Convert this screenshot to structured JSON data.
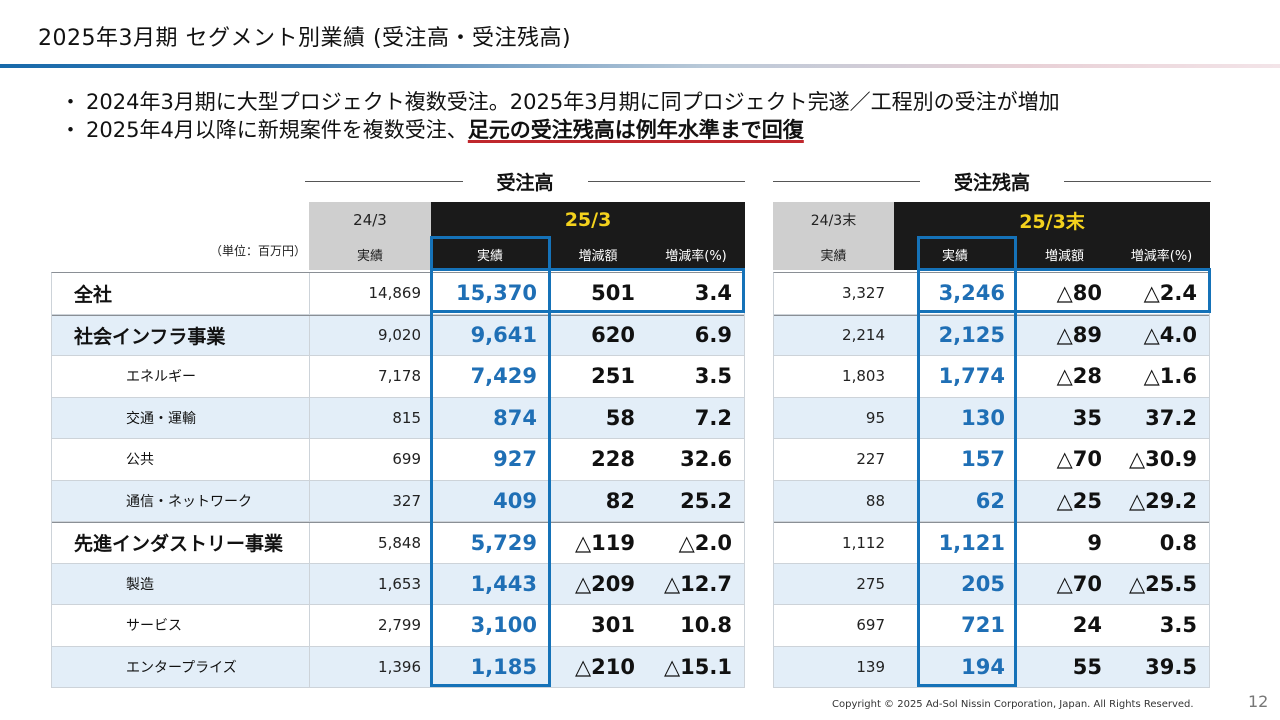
{
  "title": "2025年3月期 セグメント別業績 (受注高・受注残高)",
  "bullets": [
    {
      "text": "2024年3月期に大型プロジェクト複数受注。2025年3月期に同プロジェクト完遂／工程別の受注が増加",
      "highlight": ""
    },
    {
      "text": "2025年4月以降に新規案件を複数受注、",
      "highlight": "足元の受注残高は例年水準まで回復"
    }
  ],
  "bullet_mark": "・",
  "unit_label": "（単位：百万円）",
  "orders": {
    "section_title": "受注高",
    "prev_period": "24/3",
    "cur_period": "25/3",
    "col_actual": "実績",
    "col_change": "増減額",
    "col_rate": "増減率(%)"
  },
  "backlog": {
    "section_title": "受注残高",
    "prev_period": "24/3末",
    "cur_period": "25/3末",
    "col_actual": "実績",
    "col_change": "増減額",
    "col_rate": "増減率(%)"
  },
  "rows": [
    {
      "label": "全社",
      "level": 1,
      "o_prev": "14,869",
      "o_cur": "15,370",
      "o_chg": "501",
      "o_rate": "3.4",
      "b_prev": "3,327",
      "b_cur": "3,246",
      "b_chg": "△80",
      "b_rate": "△2.4"
    },
    {
      "label": "社会インフラ事業",
      "level": 1,
      "o_prev": "9,020",
      "o_cur": "9,641",
      "o_chg": "620",
      "o_rate": "6.9",
      "b_prev": "2,214",
      "b_cur": "2,125",
      "b_chg": "△89",
      "b_rate": "△4.0"
    },
    {
      "label": "エネルギー",
      "level": 2,
      "o_prev": "7,178",
      "o_cur": "7,429",
      "o_chg": "251",
      "o_rate": "3.5",
      "b_prev": "1,803",
      "b_cur": "1,774",
      "b_chg": "△28",
      "b_rate": "△1.6"
    },
    {
      "label": "交通・運輸",
      "level": 2,
      "o_prev": "815",
      "o_cur": "874",
      "o_chg": "58",
      "o_rate": "7.2",
      "b_prev": "95",
      "b_cur": "130",
      "b_chg": "35",
      "b_rate": "37.2"
    },
    {
      "label": "公共",
      "level": 2,
      "o_prev": "699",
      "o_cur": "927",
      "o_chg": "228",
      "o_rate": "32.6",
      "b_prev": "227",
      "b_cur": "157",
      "b_chg": "△70",
      "b_rate": "△30.9"
    },
    {
      "label": "通信・ネットワーク",
      "level": 2,
      "o_prev": "327",
      "o_cur": "409",
      "o_chg": "82",
      "o_rate": "25.2",
      "b_prev": "88",
      "b_cur": "62",
      "b_chg": "△25",
      "b_rate": "△29.2"
    },
    {
      "label": "先進インダストリー事業",
      "level": 1,
      "o_prev": "5,848",
      "o_cur": "5,729",
      "o_chg": "△119",
      "o_rate": "△2.0",
      "b_prev": "1,112",
      "b_cur": "1,121",
      "b_chg": "9",
      "b_rate": "0.8"
    },
    {
      "label": "製造",
      "level": 2,
      "o_prev": "1,653",
      "o_cur": "1,443",
      "o_chg": "△209",
      "o_rate": "△12.7",
      "b_prev": "275",
      "b_cur": "205",
      "b_chg": "△70",
      "b_rate": "△25.5"
    },
    {
      "label": "サービス",
      "level": 2,
      "o_prev": "2,799",
      "o_cur": "3,100",
      "o_chg": "301",
      "o_rate": "10.8",
      "b_prev": "697",
      "b_cur": "721",
      "b_chg": "24",
      "b_rate": "3.5"
    },
    {
      "label": "エンタープライズ",
      "level": 2,
      "o_prev": "1,396",
      "o_cur": "1,185",
      "o_chg": "△210",
      "o_rate": "△15.1",
      "b_prev": "139",
      "b_cur": "194",
      "b_chg": "55",
      "b_rate": "39.5"
    }
  ],
  "colors": {
    "accent_blue": "#1572b8",
    "value_blue": "#1f6fb5",
    "header_black": "#1a1a1a",
    "header_yellow": "#f4d21d",
    "row_alt": "#e3eef8",
    "underline_red": "#c0282d"
  },
  "copyright": "Copyright © 2025 Ad-Sol Nissin Corporation, Japan. All Rights Reserved.",
  "page_number": "12"
}
